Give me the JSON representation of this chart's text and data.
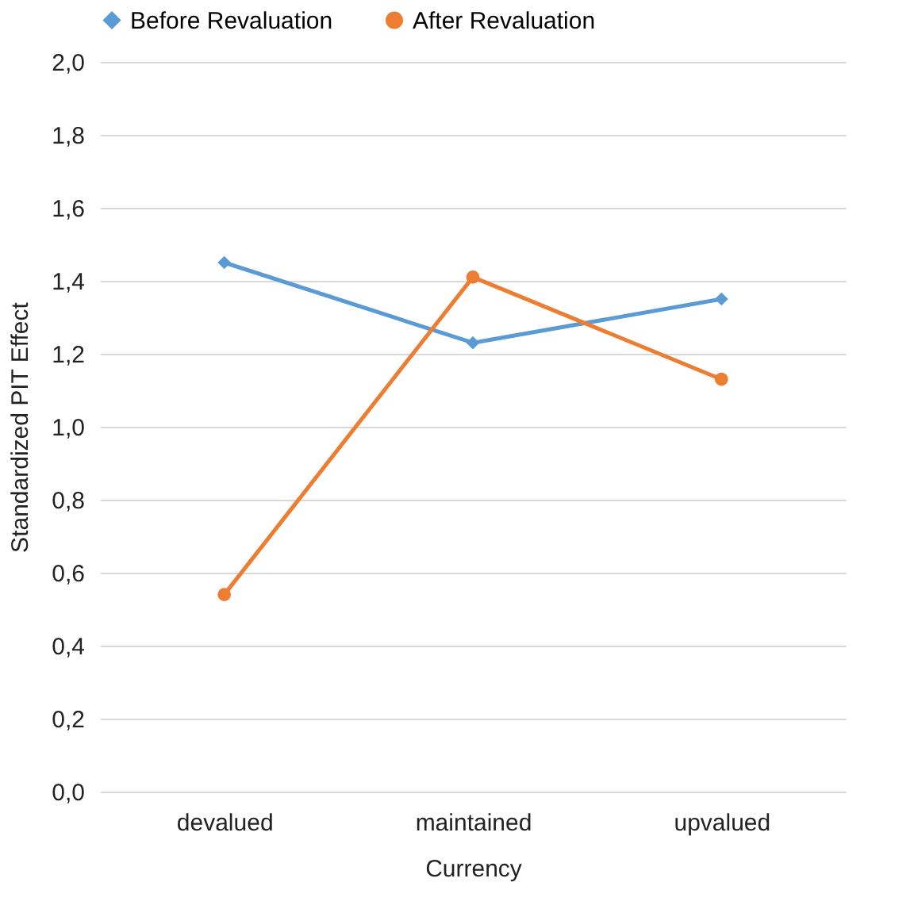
{
  "chart_data": {
    "type": "line",
    "xlabel": "Currency",
    "ylabel": "Standardized PIT Effect",
    "categories": [
      "devalued",
      "maintained",
      "upvalued"
    ],
    "series": [
      {
        "name": "Before Revaluation",
        "color": "#5b9bd5",
        "marker": "diamond",
        "values": [
          1.45,
          1.23,
          1.35
        ]
      },
      {
        "name": "After Revaluation",
        "color": "#ed7d31",
        "marker": "circle",
        "values": [
          0.54,
          1.41,
          1.13
        ]
      }
    ],
    "ylim": [
      0,
      2
    ],
    "yticks": [
      {
        "value": 0,
        "label": "0,0"
      },
      {
        "value": 0.2,
        "label": "0,2"
      },
      {
        "value": 0.4,
        "label": "0,4"
      },
      {
        "value": 0.6,
        "label": "0,6"
      },
      {
        "value": 0.8,
        "label": "0,8"
      },
      {
        "value": 1,
        "label": "1,0"
      },
      {
        "value": 1.2,
        "label": "1,2"
      },
      {
        "value": 1.4,
        "label": "1,4"
      },
      {
        "value": 1.6,
        "label": "1,6"
      },
      {
        "value": 1.8,
        "label": "1,8"
      },
      {
        "value": 2,
        "label": "2,0"
      }
    ],
    "grid": "y",
    "legend": "top",
    "line_style": "solid"
  }
}
